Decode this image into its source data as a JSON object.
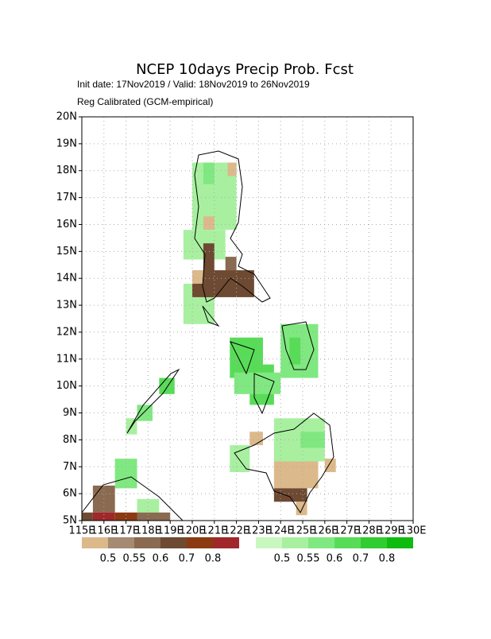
{
  "map": {
    "title": "NCEP 10days Precip Prob. Fcst",
    "subtitle": "Init date: 17Nov2019 / Valid: 18Nov2019 to 26Nov2019",
    "note": "Reg Calibrated (GCM-empirical)",
    "xlim": [
      115,
      130
    ],
    "ylim": [
      5,
      20
    ],
    "xticks": [
      {
        "value": 115,
        "label": "115E"
      },
      {
        "value": 116,
        "label": "116E"
      },
      {
        "value": 117,
        "label": "117E"
      },
      {
        "value": 118,
        "label": "118E"
      },
      {
        "value": 119,
        "label": "119E"
      },
      {
        "value": 120,
        "label": "120E"
      },
      {
        "value": 121,
        "label": "121E"
      },
      {
        "value": 122,
        "label": "122E"
      },
      {
        "value": 123,
        "label": "123E"
      },
      {
        "value": 124,
        "label": "124E"
      },
      {
        "value": 125,
        "label": "125E"
      },
      {
        "value": 126,
        "label": "126E"
      },
      {
        "value": 127,
        "label": "127E"
      },
      {
        "value": 128,
        "label": "128E"
      },
      {
        "value": 129,
        "label": "129E"
      },
      {
        "value": 130,
        "label": "130E"
      }
    ],
    "yticks": [
      {
        "value": 5,
        "label": "5N"
      },
      {
        "value": 6,
        "label": "6N"
      },
      {
        "value": 7,
        "label": "7N"
      },
      {
        "value": 8,
        "label": "8N"
      },
      {
        "value": 9,
        "label": "9N"
      },
      {
        "value": 10,
        "label": "10N"
      },
      {
        "value": 11,
        "label": "11N"
      },
      {
        "value": 12,
        "label": "12N"
      },
      {
        "value": 13,
        "label": "13N"
      },
      {
        "value": 14,
        "label": "14N"
      },
      {
        "value": 15,
        "label": "15N"
      },
      {
        "value": 16,
        "label": "16N"
      },
      {
        "value": 17,
        "label": "17N"
      },
      {
        "value": 18,
        "label": "18N"
      },
      {
        "value": 19,
        "label": "19N"
      },
      {
        "value": 20,
        "label": "20N"
      }
    ],
    "grid": true,
    "dry_legend": {
      "levels": [
        0.5,
        0.55,
        0.6,
        0.7,
        0.8
      ],
      "colors": [
        "#dcb98b",
        "#a58a74",
        "#8a6a50",
        "#6e4a32",
        "#8b3a12",
        "#a0282a"
      ]
    },
    "wet_legend": {
      "levels": [
        0.5,
        0.55,
        0.6,
        0.7,
        0.8
      ],
      "colors": [
        "#c8f7c0",
        "#a8f0a0",
        "#80e880",
        "#58dc58",
        "#30cc30",
        "#10bb10"
      ]
    },
    "cells": [
      {
        "kind": "wet",
        "p": 0.52,
        "lon": [
          120,
          122
        ],
        "lat": [
          15.8,
          18.3
        ]
      },
      {
        "kind": "wet",
        "p": 0.57,
        "lon": [
          120.5,
          121
        ],
        "lat": [
          17.5,
          18.3
        ]
      },
      {
        "kind": "dry",
        "p": 0.45,
        "lon": [
          121.6,
          122
        ],
        "lat": [
          17.8,
          18.3
        ]
      },
      {
        "kind": "dry",
        "p": 0.45,
        "lon": [
          120.5,
          121
        ],
        "lat": [
          15.8,
          16.3
        ]
      },
      {
        "kind": "wet",
        "p": 0.52,
        "lon": [
          119.6,
          121.5
        ],
        "lat": [
          14.7,
          15.8
        ]
      },
      {
        "kind": "wet",
        "p": 0.52,
        "lon": [
          119.6,
          121
        ],
        "lat": [
          12.3,
          13.8
        ]
      },
      {
        "kind": "dry",
        "p": 0.65,
        "lon": [
          120,
          122.8
        ],
        "lat": [
          13.3,
          14.3
        ]
      },
      {
        "kind": "dry",
        "p": 0.65,
        "lon": [
          120.5,
          121
        ],
        "lat": [
          13.3,
          15.3
        ]
      },
      {
        "kind": "dry",
        "p": 0.57,
        "lon": [
          121.5,
          122
        ],
        "lat": [
          14.3,
          14.8
        ]
      },
      {
        "kind": "dry",
        "p": 0.45,
        "lon": [
          120,
          120.5
        ],
        "lat": [
          13.8,
          14.3
        ]
      },
      {
        "kind": "wet",
        "p": 0.65,
        "lon": [
          121.7,
          123.2
        ],
        "lat": [
          10.3,
          11.8
        ]
      },
      {
        "kind": "wet",
        "p": 0.65,
        "lon": [
          122.6,
          123.7
        ],
        "lat": [
          9.3,
          10.8
        ]
      },
      {
        "kind": "wet",
        "p": 0.57,
        "lon": [
          121.9,
          124
        ],
        "lat": [
          9.7,
          10.5
        ]
      },
      {
        "kind": "wet",
        "p": 0.57,
        "lon": [
          124,
          125.7
        ],
        "lat": [
          10.3,
          12.3
        ]
      },
      {
        "kind": "wet",
        "p": 0.65,
        "lon": [
          124.4,
          124.9
        ],
        "lat": [
          10.8,
          11.8
        ]
      },
      {
        "kind": "wet",
        "p": 0.52,
        "lon": [
          123.7,
          126
        ],
        "lat": [
          7.2,
          8.8
        ]
      },
      {
        "kind": "wet",
        "p": 0.57,
        "lon": [
          124.9,
          126
        ],
        "lat": [
          7.7,
          8.3
        ]
      },
      {
        "kind": "dry",
        "p": 0.45,
        "lon": [
          123.7,
          125.7
        ],
        "lat": [
          6.2,
          7.2
        ]
      },
      {
        "kind": "dry",
        "p": 0.65,
        "lon": [
          123.7,
          125.2
        ],
        "lat": [
          5.7,
          6.2
        ]
      },
      {
        "kind": "dry",
        "p": 0.45,
        "lon": [
          124.7,
          125.2
        ],
        "lat": [
          5.2,
          5.7
        ]
      },
      {
        "kind": "dry",
        "p": 0.45,
        "lon": [
          126,
          126.5
        ],
        "lat": [
          6.8,
          7.3
        ]
      },
      {
        "kind": "wet",
        "p": 0.52,
        "lon": [
          121.7,
          122.6
        ],
        "lat": [
          6.8,
          7.8
        ]
      },
      {
        "kind": "dry",
        "p": 0.45,
        "lon": [
          122.6,
          123.2
        ],
        "lat": [
          7.8,
          8.3
        ]
      },
      {
        "kind": "wet",
        "p": 0.65,
        "lon": [
          118.5,
          119.2
        ],
        "lat": [
          9.7,
          10.3
        ]
      },
      {
        "kind": "wet",
        "p": 0.57,
        "lon": [
          117.5,
          118.2
        ],
        "lat": [
          8.7,
          9.3
        ]
      },
      {
        "kind": "wet",
        "p": 0.52,
        "lon": [
          117,
          117.5
        ],
        "lat": [
          8.2,
          8.8
        ]
      },
      {
        "kind": "wet",
        "p": 0.57,
        "lon": [
          116.5,
          117.5
        ],
        "lat": [
          6.2,
          7.3
        ]
      },
      {
        "kind": "dry",
        "p": 0.57,
        "lon": [
          115.5,
          116.5
        ],
        "lat": [
          5.3,
          6.3
        ]
      },
      {
        "kind": "wet",
        "p": 0.52,
        "lon": [
          117.5,
          118.5
        ],
        "lat": [
          5.3,
          5.8
        ]
      },
      {
        "kind": "dry",
        "p": 0.65,
        "lon": [
          115,
          115.5
        ],
        "lat": [
          5,
          5.3
        ]
      },
      {
        "kind": "dry",
        "p": 0.85,
        "lon": [
          115.5,
          116.5
        ],
        "lat": [
          5,
          5.3
        ]
      },
      {
        "kind": "dry",
        "p": 0.75,
        "lon": [
          116.5,
          117.5
        ],
        "lat": [
          5,
          5.3
        ]
      },
      {
        "kind": "dry",
        "p": 0.57,
        "lon": [
          117.5,
          119
        ],
        "lat": [
          5,
          5.3
        ]
      }
    ]
  }
}
